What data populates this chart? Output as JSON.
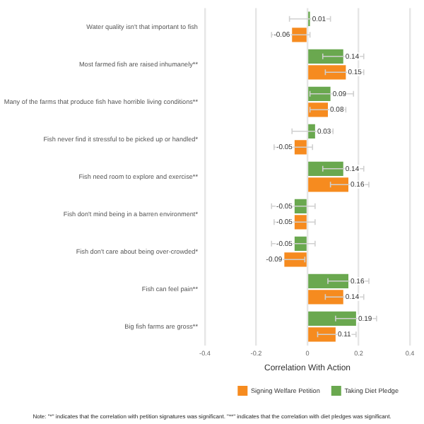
{
  "chart_data": {
    "type": "bar",
    "orientation": "horizontal",
    "xlabel": "Correlation With Action",
    "categories": [
      "Water quality isn't that important to fish",
      "Most farmed fish are raised inhumanely**",
      "Many of the farms that produce fish have horrible living conditions**",
      "Fish never find it stressful to be picked up or handled*",
      "Fish need room to explore and exercise**",
      "Fish don't mind being in a barren environment*",
      "Fish don't care about being over-crowded*",
      "Fish can feel pain**",
      "Big fish farms are gross**"
    ],
    "series": [
      {
        "name": "Taking Diet Pledge",
        "color": "#6aa84f",
        "values": [
          0.01,
          0.14,
          0.09,
          0.03,
          0.14,
          -0.05,
          -0.05,
          0.16,
          0.19
        ],
        "errors": [
          [
            -0.07,
            0.09
          ],
          [
            0.06,
            0.22
          ],
          [
            0.01,
            0.18
          ],
          [
            -0.06,
            0.1
          ],
          [
            0.06,
            0.22
          ],
          [
            -0.14,
            0.03
          ],
          [
            -0.14,
            0.03
          ],
          [
            0.08,
            0.24
          ],
          [
            0.11,
            0.27
          ]
        ]
      },
      {
        "name": "Signing Welfare Petition",
        "color": "#f68b1f",
        "values": [
          -0.06,
          0.15,
          0.08,
          -0.05,
          0.16,
          -0.05,
          -0.09,
          0.14,
          0.11
        ],
        "errors": [
          [
            -0.14,
            0.01
          ],
          [
            0.07,
            0.22
          ],
          [
            0.01,
            0.15
          ],
          [
            -0.13,
            0.02
          ],
          [
            0.09,
            0.24
          ],
          [
            -0.13,
            0.03
          ],
          [
            -0.16,
            -0.01
          ],
          [
            0.07,
            0.22
          ],
          [
            0.04,
            0.19
          ]
        ]
      }
    ],
    "xlim": [
      -0.4,
      0.4
    ],
    "xticks": [
      -0.4,
      -0.2,
      0,
      0.2,
      0.4
    ],
    "grid": "x",
    "legend": "bottom",
    "data_labels": true,
    "annotations": [
      "Note: \"*\" indicates that the correlation with petition signatures was significant. \"**\" indicates that the correlation with diet pledges was significant."
    ]
  }
}
